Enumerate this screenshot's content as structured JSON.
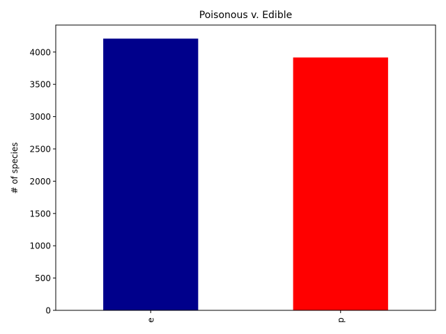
{
  "chart_data": {
    "type": "bar",
    "title": "Poisonous v. Edible",
    "xlabel": "",
    "ylabel": "# of species",
    "categories": [
      "e",
      "p"
    ],
    "values": [
      4208,
      3916
    ],
    "colors": [
      "#00008b",
      "#ff0000"
    ],
    "ylim": [
      0,
      4418
    ],
    "yticks": [
      0,
      500,
      1000,
      1500,
      2000,
      2500,
      3000,
      3500,
      4000
    ],
    "grid": false,
    "x_tick_rotation": 90
  }
}
